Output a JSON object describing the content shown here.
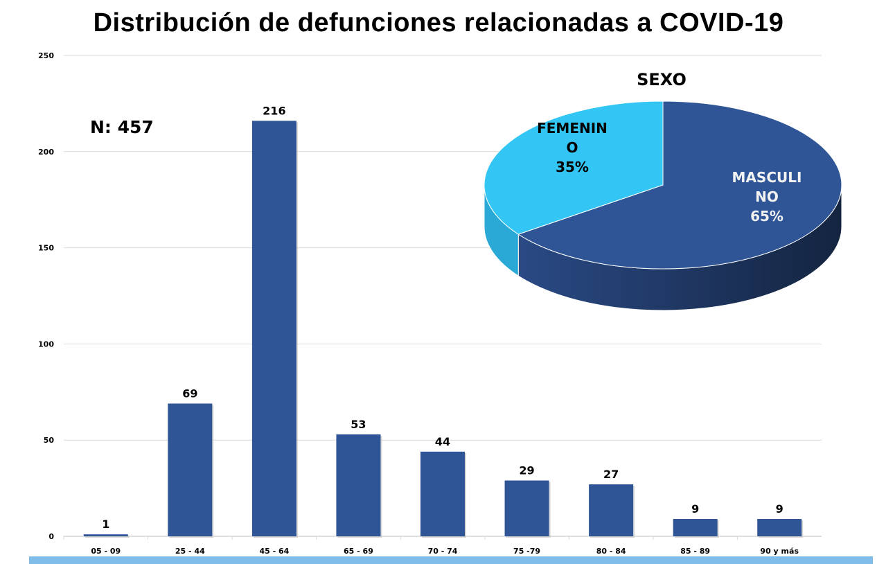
{
  "title": "Distribución de defunciones relacionadas a COVID-19",
  "colors": {
    "bar": "#2f5597",
    "male": "#2f5597",
    "male_side": "#1f3864",
    "female": "#33c6f4",
    "female_side": "#2aa9d6",
    "footer": "#7fbde8"
  },
  "chart_data": [
    {
      "type": "bar",
      "title": "",
      "annotation": "N: 457",
      "categories": [
        "05 - 09",
        "25 - 44",
        "45 - 64",
        "65 - 69",
        "70 - 74",
        "75 -79",
        "80 - 84",
        "85 - 89",
        "90 y más"
      ],
      "values": [
        1,
        69,
        216,
        53,
        44,
        29,
        27,
        9,
        9
      ],
      "ylim": [
        0,
        250
      ],
      "yticks": [
        0,
        50,
        100,
        150,
        200,
        250
      ],
      "grid": true,
      "xlabel": "",
      "ylabel": ""
    },
    {
      "type": "pie",
      "title": "SEXO",
      "slices": [
        {
          "label_lines": [
            "MASCULI",
            "NO",
            "65%"
          ],
          "name": "MASCULINO",
          "value": 65
        },
        {
          "label_lines": [
            "FEMENIN",
            "O",
            "35%"
          ],
          "name": "FEMENINO",
          "value": 35
        }
      ]
    }
  ]
}
